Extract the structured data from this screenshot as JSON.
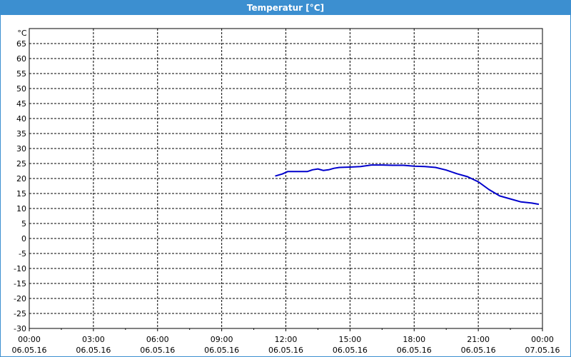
{
  "window": {
    "title": "Temperatur [°C]"
  },
  "chart_data": {
    "type": "line",
    "title": "Temperatur [°C]",
    "ylabel": "°C",
    "ylim": [
      -30,
      65
    ],
    "grid": true,
    "y_ticks": [
      65,
      60,
      55,
      50,
      45,
      40,
      35,
      30,
      25,
      20,
      15,
      10,
      5,
      0,
      -5,
      -10,
      -15,
      -20,
      -25,
      -30
    ],
    "x_ticks": [
      {
        "time": "00:00",
        "date": "06.05.16"
      },
      {
        "time": "03:00",
        "date": "06.05.16"
      },
      {
        "time": "06:00",
        "date": "06.05.16"
      },
      {
        "time": "09:00",
        "date": "06.05.16"
      },
      {
        "time": "12:00",
        "date": "06.05.16"
      },
      {
        "time": "15:00",
        "date": "06.05.16"
      },
      {
        "time": "18:00",
        "date": "06.05.16"
      },
      {
        "time": "21:00",
        "date": "06.05.16"
      },
      {
        "time": "00:00",
        "date": "07.05.16"
      }
    ],
    "xlim": [
      "06.05.16 00:00",
      "07.05.16 00:00"
    ],
    "series": [
      {
        "color": "#0000cc",
        "x": [
          "06.05.16 11:30",
          "06.05.16 11:50",
          "06.05.16 12:05",
          "06.05.16 12:30",
          "06.05.16 13:00",
          "06.05.16 13:15",
          "06.05.16 13:30",
          "06.05.16 13:45",
          "06.05.16 14:00",
          "06.05.16 14:15",
          "06.05.16 14:30",
          "06.05.16 15:00",
          "06.05.16 15:30",
          "06.05.16 16:00",
          "06.05.16 16:30",
          "06.05.16 17:00",
          "06.05.16 17:30",
          "06.05.16 18:00",
          "06.05.16 18:30",
          "06.05.16 19:00",
          "06.05.16 19:30",
          "06.05.16 20:00",
          "06.05.16 20:30",
          "06.05.16 21:00",
          "06.05.16 21:30",
          "06.05.16 22:00",
          "06.05.16 22:30",
          "06.05.16 23:00",
          "06.05.16 23:30",
          "06.05.16 23:50"
        ],
        "y": [
          20.8,
          21.5,
          22.3,
          22.3,
          22.3,
          22.9,
          23.2,
          22.7,
          22.9,
          23.4,
          23.7,
          23.8,
          24.0,
          24.5,
          24.5,
          24.4,
          24.4,
          24.1,
          24.0,
          23.7,
          22.8,
          21.6,
          20.6,
          18.9,
          16.3,
          14.2,
          13.2,
          12.2,
          11.8,
          11.4
        ]
      }
    ]
  }
}
